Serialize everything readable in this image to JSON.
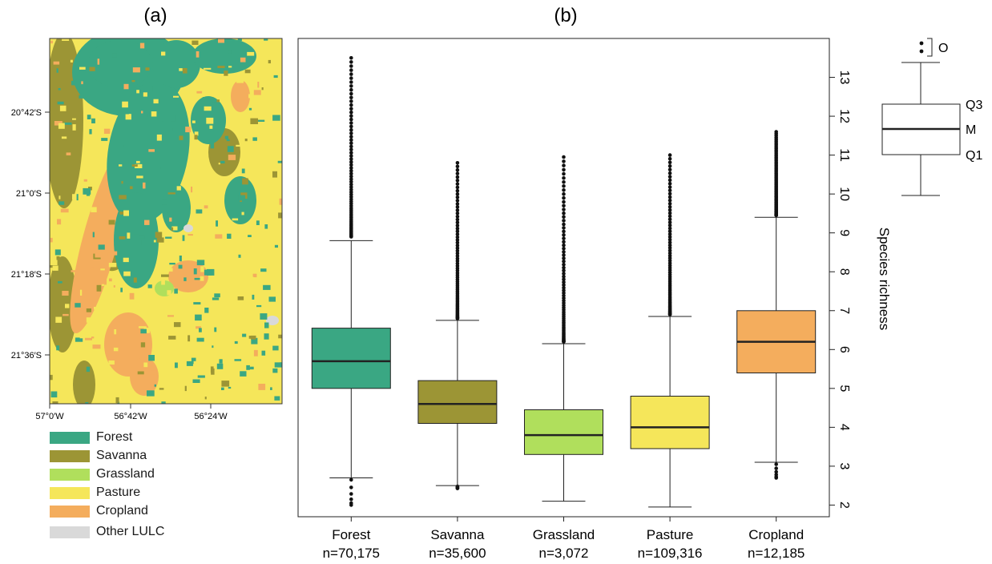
{
  "panel_a": {
    "label": "(a)",
    "lat_ticks": [
      "20°42′S",
      "21°0′S",
      "21°18′S",
      "21°36′S"
    ],
    "lon_ticks": [
      "57°0′W",
      "56°42′W",
      "56°24′W"
    ],
    "legend": [
      {
        "label": "Forest",
        "color": "#3aa783"
      },
      {
        "label": "Savanna",
        "color": "#9c9535"
      },
      {
        "label": "Grassland",
        "color": "#b0df5c"
      },
      {
        "label": "Pasture",
        "color": "#f5e65a"
      },
      {
        "label": "Cropland",
        "color": "#f4ad5d"
      },
      {
        "label": "Other LULC",
        "color": "#d9d9d9"
      }
    ]
  },
  "panel_b": {
    "label": "(b)"
  },
  "key": {
    "labels": [
      "O",
      "Q3",
      "M",
      "Q1"
    ]
  },
  "chart_data": {
    "type": "boxplot",
    "ylabel": "Species richness",
    "ylim": [
      1.7,
      14.0
    ],
    "yticks": [
      2,
      3,
      4,
      5,
      6,
      7,
      8,
      9,
      10,
      11,
      12,
      13
    ],
    "categories": [
      "Forest",
      "Savanna",
      "Grassland",
      "Pasture",
      "Cropland"
    ],
    "sample_labels": [
      "n=70,175",
      "n=35,600",
      "n=3,072",
      "n=109,316",
      "n=12,185"
    ],
    "boxes": [
      {
        "name": "Forest",
        "color": "#3aa783",
        "whisker_low": 2.7,
        "q1": 5.0,
        "median": 5.7,
        "q3": 6.55,
        "whisker_high": 8.8,
        "outliers_high": [
          8.9,
          13.5
        ],
        "outliers_low": [
          2.0,
          2.65
        ]
      },
      {
        "name": "Savanna",
        "color": "#9c9535",
        "whisker_low": 2.5,
        "q1": 4.1,
        "median": 4.6,
        "q3": 5.2,
        "whisker_high": 6.75,
        "outliers_high": [
          6.8,
          10.8
        ],
        "outliers_low": [
          2.43,
          2.48
        ]
      },
      {
        "name": "Grassland",
        "color": "#b0df5c",
        "whisker_low": 2.1,
        "q1": 3.3,
        "median": 3.8,
        "q3": 4.45,
        "whisker_high": 6.15,
        "outliers_high": [
          6.2,
          10.95
        ],
        "outliers_low": []
      },
      {
        "name": "Pasture",
        "color": "#f5e65a",
        "whisker_low": 1.95,
        "q1": 3.45,
        "median": 4.0,
        "q3": 4.8,
        "whisker_high": 6.85,
        "outliers_high": [
          6.9,
          11.0
        ],
        "outliers_low": []
      },
      {
        "name": "Cropland",
        "color": "#f4ad5d",
        "whisker_low": 3.1,
        "q1": 5.4,
        "median": 6.2,
        "q3": 7.0,
        "whisker_high": 9.4,
        "outliers_high": [
          9.45,
          11.6
        ],
        "outliers_low": [
          2.7,
          3.05
        ]
      }
    ]
  }
}
